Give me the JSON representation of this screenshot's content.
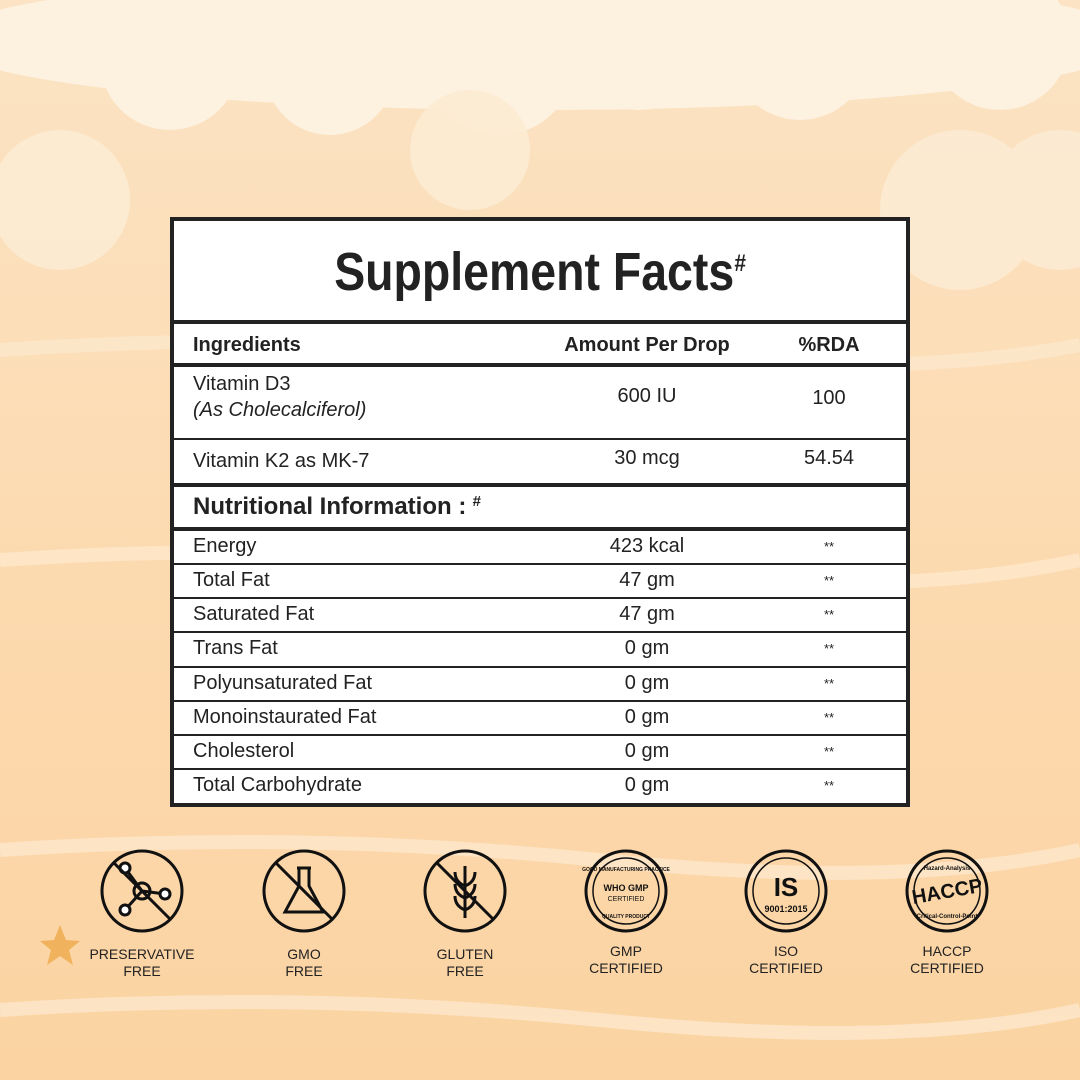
{
  "title": "Supplement Facts",
  "title_mark": "#",
  "table": {
    "headers": [
      "Ingredients",
      "Amount Per Drop",
      "%RDA"
    ],
    "rows": [
      {
        "name": "Vitamin D3",
        "note": "(As Cholecalciferol)",
        "amount": "600 IU",
        "rda": "100"
      },
      {
        "name": "Vitamin K2 as MK-7",
        "amount": "30 mcg",
        "rda": "54.54"
      }
    ]
  },
  "nutrition": {
    "title": "Nutritional Information :",
    "title_mark": "#",
    "rows": [
      {
        "name": "Energy",
        "amount": "423 kcal",
        "rda": "**"
      },
      {
        "name": "Total Fat",
        "amount": "47 gm",
        "rda": "**"
      },
      {
        "name": "Saturated Fat",
        "amount": "47 gm",
        "rda": "**"
      },
      {
        "name": "Trans Fat",
        "amount": "0 gm",
        "rda": "**"
      },
      {
        "name": "Polyunsaturated Fat",
        "amount": "0 gm",
        "rda": "**"
      },
      {
        "name": "Monoinstaurated Fat",
        "amount": "0 gm",
        "rda": "**"
      },
      {
        "name": "Cholesterol",
        "amount": "0 gm",
        "rda": "**"
      },
      {
        "name": "Total Carbohydrate",
        "amount": "0 gm",
        "rda": "**"
      }
    ]
  },
  "badges": [
    {
      "label": [
        "PRESERVATIVE",
        "FREE"
      ]
    },
    {
      "label": [
        "GMO",
        "FREE"
      ]
    },
    {
      "label": [
        "GLUTEN",
        "FREE"
      ]
    },
    {
      "label": [
        "GMP",
        "CERTIFIED"
      ],
      "inner": [
        "GOOD MANUFACTURING PRACTICE",
        "WHO GMP",
        "CERTIFIED",
        "QUALITY PRODUCT"
      ]
    },
    {
      "label": [
        "ISO",
        "CERTIFIED"
      ],
      "inner": [
        "IS",
        "9001:2015"
      ]
    },
    {
      "label": [
        "HACCP",
        "CERTIFIED"
      ],
      "inner": [
        "Hazard-Analysis",
        "HACCP",
        "Critical-Control-Point"
      ]
    }
  ]
}
